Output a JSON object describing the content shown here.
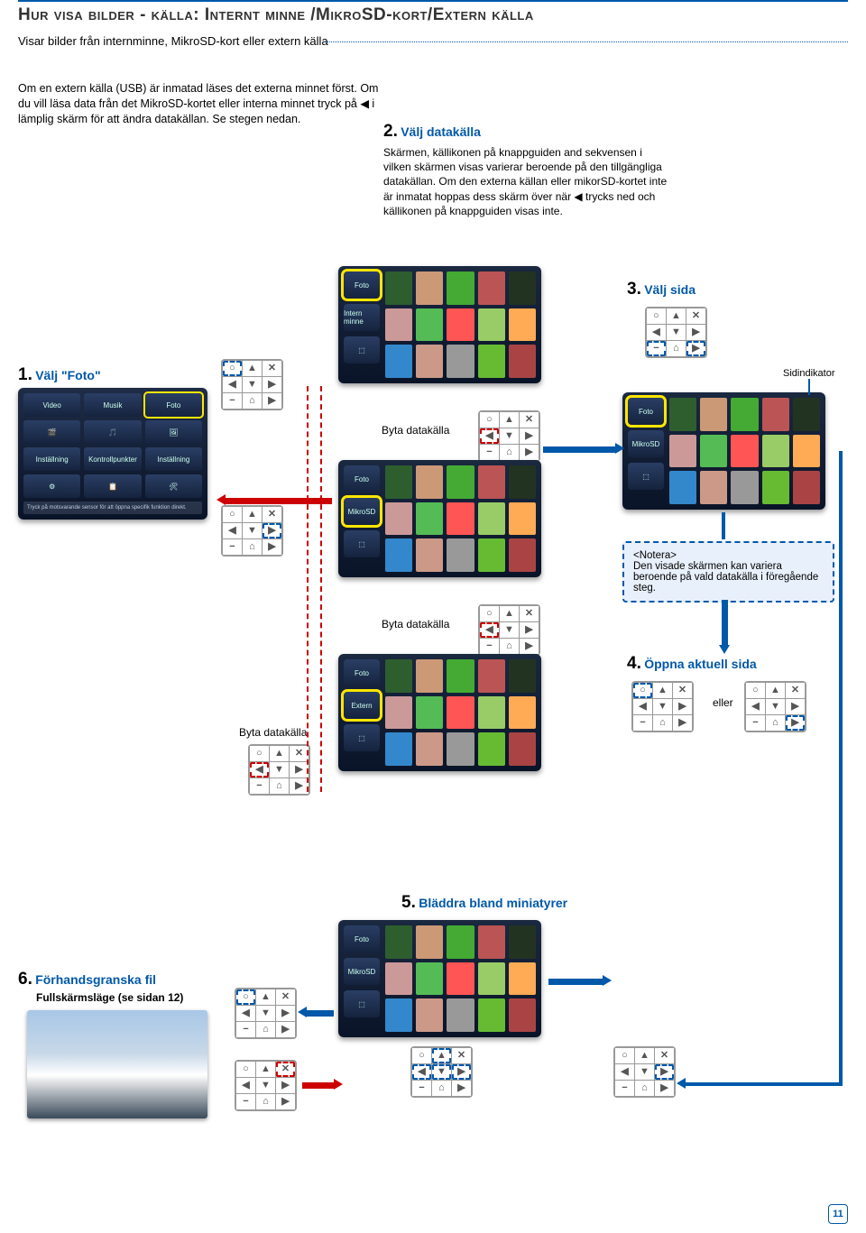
{
  "title": "Hur visa bilder - källa: Internt minne /MikroSD-kort/Extern källa",
  "subtitle": "Visar bilder från internminne, MikroSD-kort eller extern källa",
  "intro": "Om en extern källa (USB) är inmatad läses det externa minnet först. Om du vill läsa data från det MikroSD-kortet eller interna minnet tryck på ◀ i lämplig skärm för att ändra datakällan. Se stegen nedan.",
  "steps": {
    "s1": {
      "num": "1.",
      "title": "Välj \"Foto\""
    },
    "s2": {
      "num": "2.",
      "title": "Välj datakälla",
      "body": "Skärmen, källikonen på knappguiden and sekvensen i vilken skärmen visas varierar beroende på den tillgängliga datakällan. Om den externa källan eller mikorSD-kortet inte är inmatat hoppas dess skärm över när ◀ trycks ned och källikonen på knappguiden visas inte."
    },
    "s3": {
      "num": "3.",
      "title": "Välj sida"
    },
    "s4": {
      "num": "4.",
      "title": "Öppna aktuell sida"
    },
    "s5": {
      "num": "5.",
      "title": "Bläddra bland miniatyrer"
    },
    "s6": {
      "num": "6.",
      "title": "Förhandsgranska fil",
      "sub": "Fullskärmsläge (se sidan 12)"
    }
  },
  "labels": {
    "byta": "Byta datakälla",
    "sidind": "Sidindikator",
    "eller": "eller",
    "notera_h": "<Notera>",
    "notera_b": "Den visade skärmen kan variera beroende på vald datakälla i föregående steg."
  },
  "menu": {
    "row1": [
      "Video",
      "Musik",
      "Foto"
    ],
    "row2": [
      "Inställning",
      "Kontrollpunkter",
      "Inställning"
    ],
    "foot": "Tryck på motsvarande sensor för att öppna specifik funktion direkt."
  },
  "side": {
    "foto": "Foto",
    "intern": "Intern minne",
    "sd": "MikroSD",
    "ext": "Extern"
  },
  "remote_glyphs": {
    "o": "○",
    "up": "▲",
    "x": "✕",
    "lt": "◀",
    "dn": "▼",
    "rt": "▶",
    "mn": "−",
    "hm": "⌂",
    "pl": "▶"
  },
  "thumb_colors": [
    "#2e5e2e",
    "#c97",
    "#4a3",
    "#b55",
    "#232",
    "#c99",
    "#5b5",
    "#f55",
    "#9c6",
    "#fa5",
    "#38c",
    "#c98",
    "#999",
    "#6b3",
    "#a44"
  ],
  "photo_gradient": [
    "#a7c7e7",
    "#c8d8e8",
    "#ffffff",
    "#3a4a5a"
  ],
  "page_num": "11"
}
